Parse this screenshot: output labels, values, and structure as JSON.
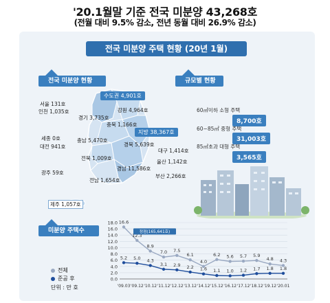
{
  "header": {
    "headline": "'20.1월말 기준 전국 미분양 43,268호",
    "subline": "(전월 대비 9.5% 감소, 전년 동월 대비 26.9% 감소)"
  },
  "banner": "전국 미분양 주택 현황 (20년 1월)",
  "sections": {
    "national": "전국 미분양 현황",
    "by_size": "규모별 현황",
    "trend": "미분양 주택수"
  },
  "map": {
    "metro_tag": "수도권 4,901호",
    "provincial_tag": "지방 38,367호",
    "regions": [
      {
        "id": "seoul",
        "text": "서울 131호"
      },
      {
        "id": "incheon",
        "text": "인천 1,035호"
      },
      {
        "id": "gyeonggi",
        "text": "경기 3,735호"
      },
      {
        "id": "gangwon",
        "text": "강원 4,964호"
      },
      {
        "id": "chungbuk",
        "text": "충북 1,166호"
      },
      {
        "id": "sejong",
        "text": "세종 0호"
      },
      {
        "id": "daejeon",
        "text": "대전 941호"
      },
      {
        "id": "chungnam",
        "text": "충남 5,470호"
      },
      {
        "id": "gyeongbuk",
        "text": "경북 5,639호"
      },
      {
        "id": "daegu",
        "text": "대구 1,414호"
      },
      {
        "id": "jeonbuk",
        "text": "전북 1,009호"
      },
      {
        "id": "ulsan",
        "text": "울산 1,142호"
      },
      {
        "id": "gwangju",
        "text": "광주 59호"
      },
      {
        "id": "gyeongnam",
        "text": "경남 11,586호"
      },
      {
        "id": "busan",
        "text": "부산 2,266호"
      },
      {
        "id": "jeonnam",
        "text": "전남 1,654호"
      },
      {
        "id": "jeju",
        "text": "제주 1,057호"
      }
    ]
  },
  "by_size": [
    {
      "label": "60㎡이하 소형 주택",
      "value": "8,700호"
    },
    {
      "label": "60~85㎡ 중형 주택",
      "value": "31,003호"
    },
    {
      "label": "85㎡초과 대형 주택",
      "value": "3,565호"
    }
  ],
  "legend": {
    "total": "전체",
    "completed": "준공 후",
    "unit": "단위 : 만 호"
  },
  "colors": {
    "accent": "#3a7fbf",
    "banner": "#2f6fae",
    "total_line": "#9aa9c2",
    "completed_line": "#1f4e9c",
    "panel": "#eef3f8"
  },
  "chart_data": {
    "type": "line",
    "categories": [
      "'09.03",
      "'09.12",
      "'10.12",
      "'11.12",
      "'12.12",
      "'13.12",
      "'14.12",
      "'15.12",
      "'16.12",
      "'17.12",
      "'18.12",
      "'19.12",
      "'20.01"
    ],
    "series": [
      {
        "name": "전체",
        "values": [
          16.6,
          12.3,
          8.9,
          7.0,
          7.5,
          6.1,
          4.0,
          6.2,
          5.6,
          5.7,
          5.9,
          4.8,
          4.3
        ]
      },
      {
        "name": "준공 후",
        "values": [
          5.2,
          5.0,
          4.3,
          3.1,
          2.9,
          2.2,
          1.6,
          1.1,
          1.0,
          1.2,
          1.7,
          1.8,
          1.8
        ]
      }
    ],
    "annotation": "정점(165,641호)",
    "yticks": [
      "0.0",
      "2.0",
      "4.0",
      "6.0",
      "8.0",
      "10.0",
      "12.0",
      "14.0",
      "16.0",
      "18.0"
    ],
    "ylim": [
      0,
      18
    ],
    "grid": true
  }
}
